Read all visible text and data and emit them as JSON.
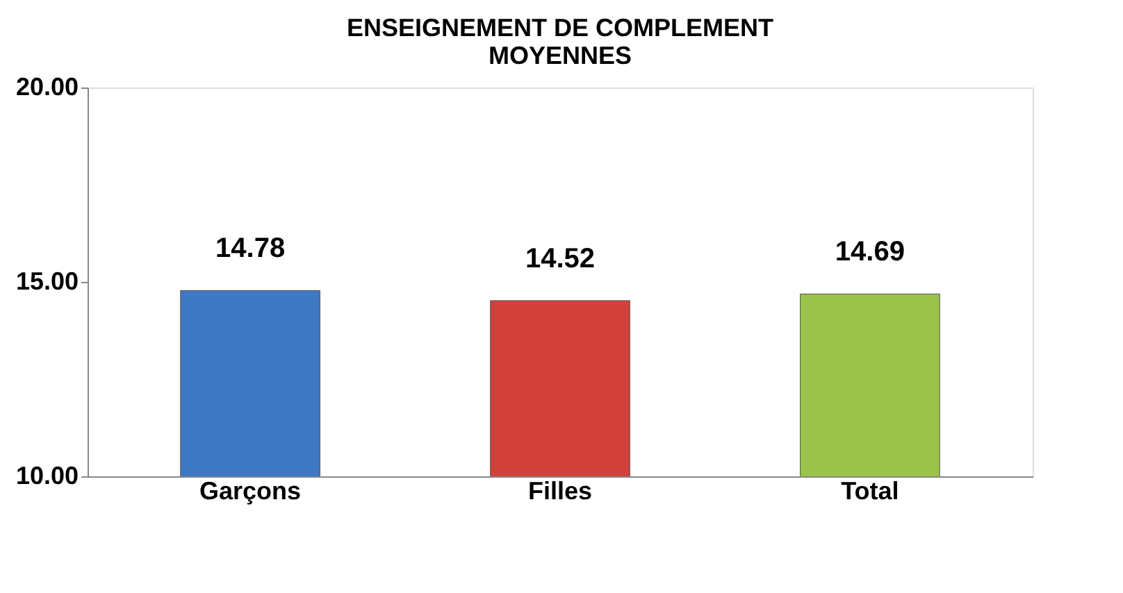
{
  "chart_data": {
    "type": "bar",
    "title": "ENSEIGNEMENT DE COMPLEMENT\nMOYENNES",
    "categories": [
      "Garçons",
      "Filles",
      "Total"
    ],
    "values": [
      14.78,
      14.52,
      14.69
    ],
    "colors": [
      "#3f78c4",
      "#d2403c",
      "#9bc34a"
    ],
    "ylim": [
      10,
      20
    ],
    "yticks": [
      {
        "value": 10,
        "label": "10.00"
      },
      {
        "value": 15,
        "label": "15.00"
      },
      {
        "value": 20,
        "label": "20.00"
      }
    ],
    "data_labels": true
  }
}
